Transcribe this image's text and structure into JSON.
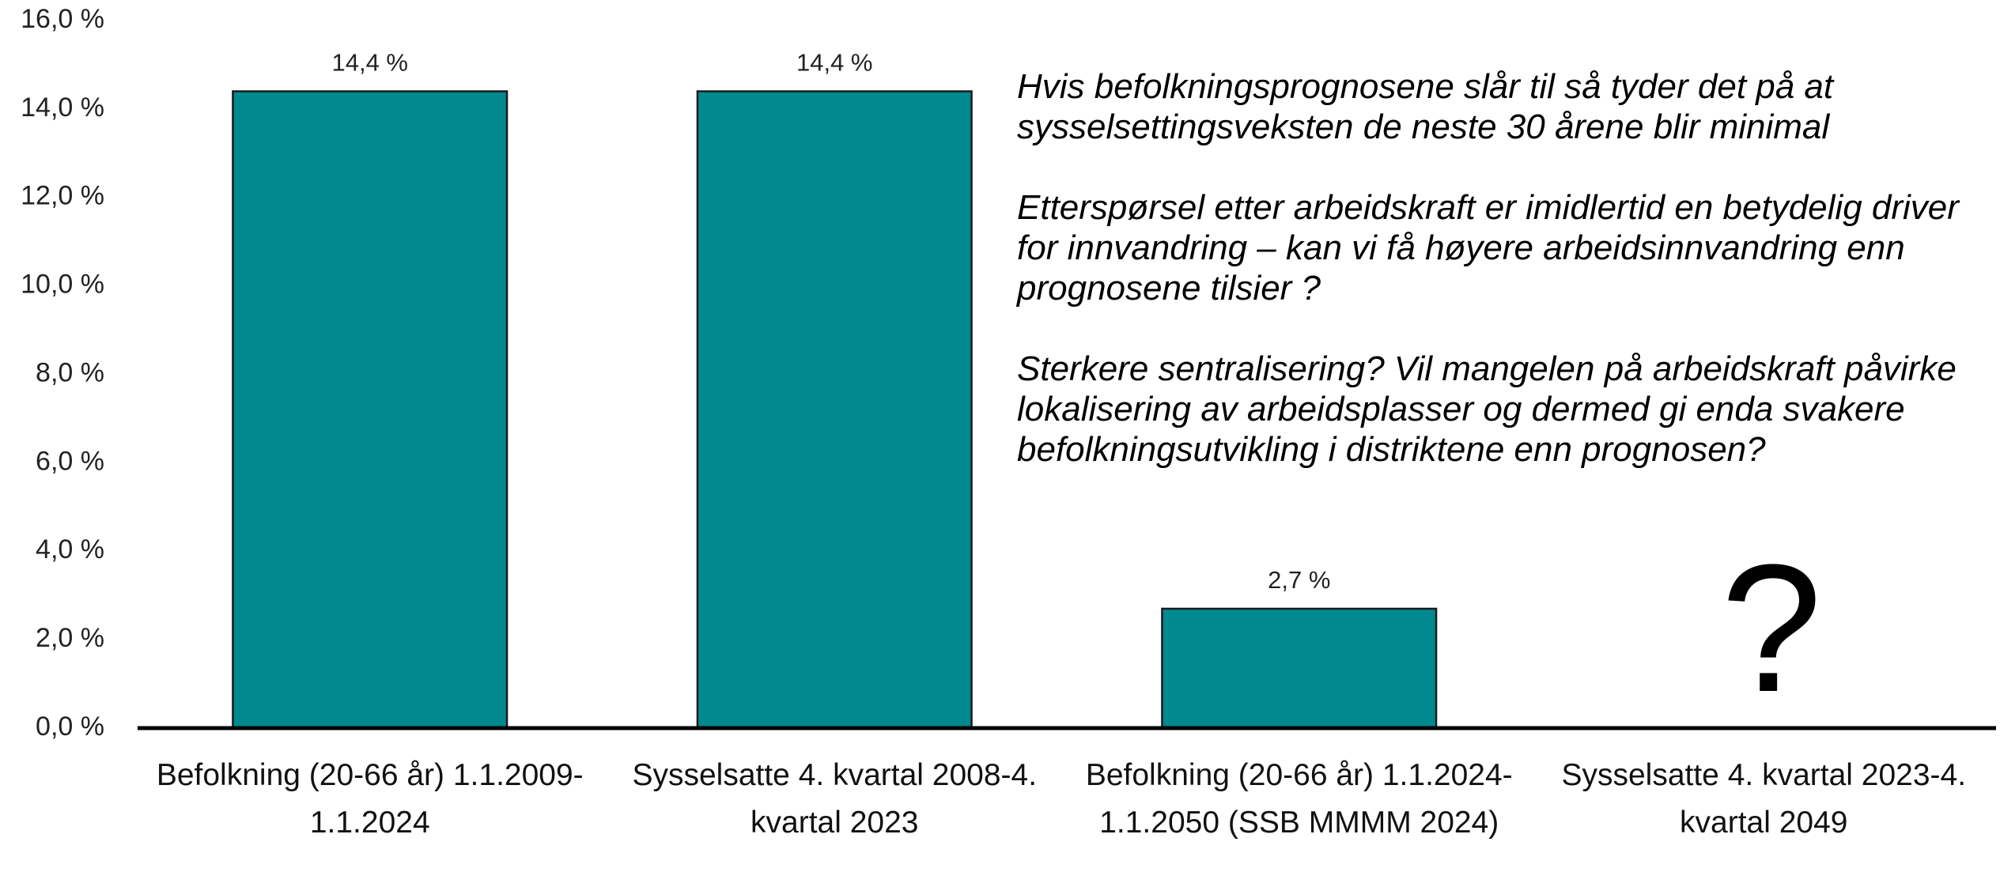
{
  "chart_data": {
    "type": "bar",
    "categories": [
      "Befolkning (20-66 år) 1.1.2009-1.1.2024",
      "Sysselsatte 4. kvartal 2008-4. kvartal 2023",
      "Befolkning (20-66 år) 1.1.2024-1.1.2050 (SSB MMMM 2024)",
      "Sysselsatte 4. kvartal 2023-4. kvartal 2049"
    ],
    "values": [
      14.4,
      14.4,
      2.7,
      null
    ],
    "value_labels": [
      "14,4 %",
      "14,4 %",
      "2,7 %",
      null
    ],
    "color": "#008a8f",
    "ylim": [
      0,
      16
    ],
    "yticks": [
      {
        "value": 0,
        "label": "0,0 %"
      },
      {
        "value": 2,
        "label": "2,0 %"
      },
      {
        "value": 4,
        "label": "4,0 %"
      },
      {
        "value": 6,
        "label": "6,0 %"
      },
      {
        "value": 8,
        "label": "8,0 %"
      },
      {
        "value": 10,
        "label": "10,0 %"
      },
      {
        "value": 12,
        "label": "12,0 %"
      },
      {
        "value": 14,
        "label": "14,0 %"
      },
      {
        "value": 16,
        "label": "16,0 %"
      }
    ],
    "grid": false,
    "annotations": [
      "Hvis befolkningsprognosene slår til så tyder det på at sysselsettingsveksten de neste 30 årene blir minimal",
      "Etterspørsel etter arbeidskraft er imidlertid en betydelig driver for innvandring – kan vi få høyere arbeidsinnvandring enn prognosene tilsier ?",
      "Sterkere sentralisering? Vil mangelen på arbeidskraft påvirke lokalisering av arbeidsplasser og dermed gi enda svakere befolkningsutvikling i distriktene enn prognosen?"
    ],
    "question_mark": "?"
  }
}
